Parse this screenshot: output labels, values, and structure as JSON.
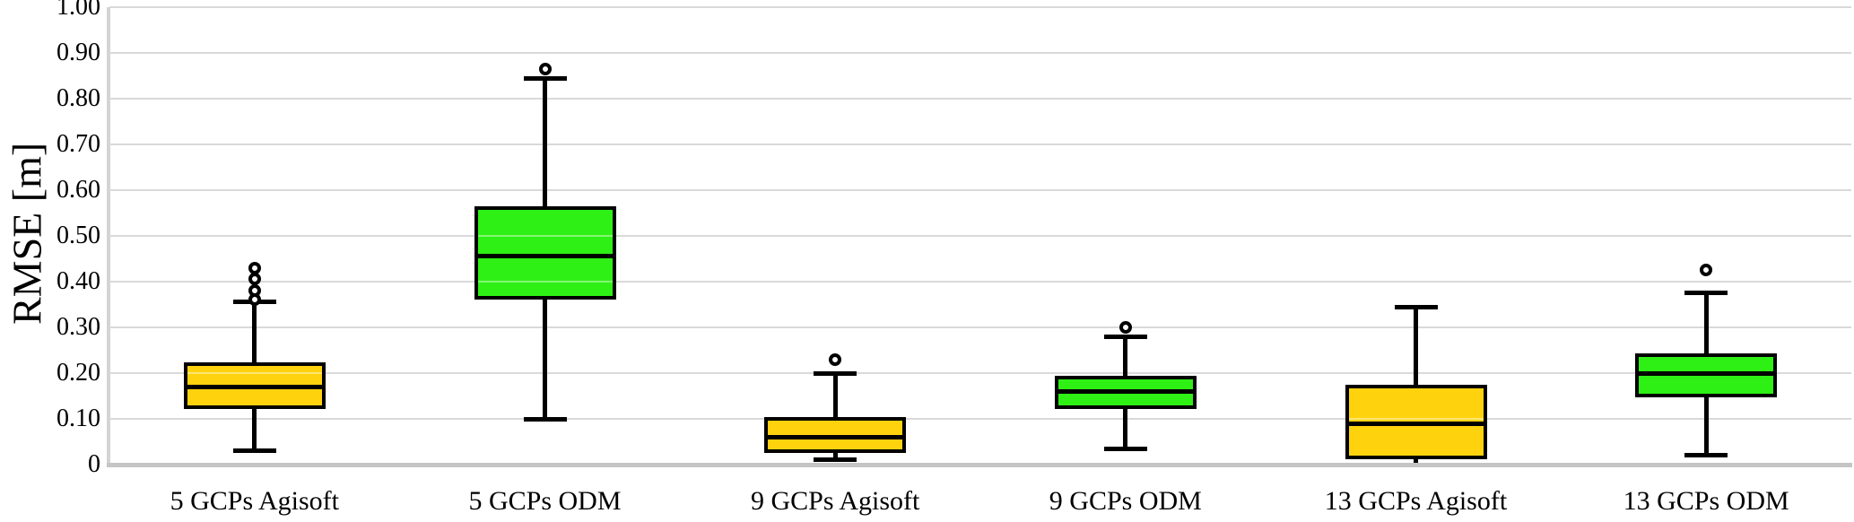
{
  "chart_data": {
    "type": "boxplot",
    "title": "",
    "ylabel": "RMSE [m]",
    "xlabel": "",
    "ylim": [
      0,
      1.0
    ],
    "grid": "horizontal",
    "legend": "none",
    "yticks": [
      {
        "value": 1.0,
        "label": "1.00"
      },
      {
        "value": 0.9,
        "label": "0.90"
      },
      {
        "value": 0.8,
        "label": "0.80"
      },
      {
        "value": 0.7,
        "label": "0.70"
      },
      {
        "value": 0.6,
        "label": "0.60"
      },
      {
        "value": 0.5,
        "label": "0.50"
      },
      {
        "value": 0.4,
        "label": "0.40"
      },
      {
        "value": 0.3,
        "label": "0.30"
      },
      {
        "value": 0.2,
        "label": "0.20"
      },
      {
        "value": 0.1,
        "label": "0.10"
      },
      {
        "value": 0.0,
        "label": "0"
      }
    ],
    "categories": [
      "5 GCPs Agisoft",
      "5 GCPs ODM",
      "9 GCPs Agisoft",
      "9 GCPs ODM",
      "13 GCPs Agisoft",
      "13 GCPs ODM"
    ],
    "series": [
      {
        "label": "5 GCPs Agisoft",
        "color": "#FFD20E",
        "whisker_low": 0.03,
        "q1": 0.125,
        "median": 0.17,
        "q3": 0.22,
        "whisker_high": 0.355,
        "outliers": [
          0.36,
          0.38,
          0.405,
          0.43
        ]
      },
      {
        "label": "5 GCPs ODM",
        "color": "#2EF014",
        "whisker_low": 0.1,
        "q1": 0.365,
        "median": 0.455,
        "q3": 0.56,
        "whisker_high": 0.845,
        "outliers": [
          0.865
        ]
      },
      {
        "label": "9 GCPs Agisoft",
        "color": "#FFD20E",
        "whisker_low": 0.01,
        "q1": 0.03,
        "median": 0.06,
        "q3": 0.1,
        "whisker_high": 0.2,
        "outliers": [
          0.23
        ]
      },
      {
        "label": "9 GCPs ODM",
        "color": "#2EF014",
        "whisker_low": 0.035,
        "q1": 0.125,
        "median": 0.16,
        "q3": 0.19,
        "whisker_high": 0.28,
        "outliers": [
          0.3
        ]
      },
      {
        "label": "13 GCPs Agisoft",
        "color": "#FFD20E",
        "whisker_low": 0.002,
        "q1": 0.015,
        "median": 0.09,
        "q3": 0.17,
        "whisker_high": 0.345,
        "outliers": []
      },
      {
        "label": "13 GCPs ODM",
        "color": "#2EF014",
        "whisker_low": 0.02,
        "q1": 0.15,
        "median": 0.2,
        "q3": 0.24,
        "whisker_high": 0.375,
        "outliers": [
          0.425
        ]
      }
    ],
    "colors": {
      "agisoft_fill": "#FFD20E",
      "odm_fill": "#2EF014",
      "box_border": "#000000",
      "gridline": "#d9d9d9",
      "axis_line": "#c5c5c5",
      "text": "#000000",
      "background": "#ffffff"
    }
  }
}
